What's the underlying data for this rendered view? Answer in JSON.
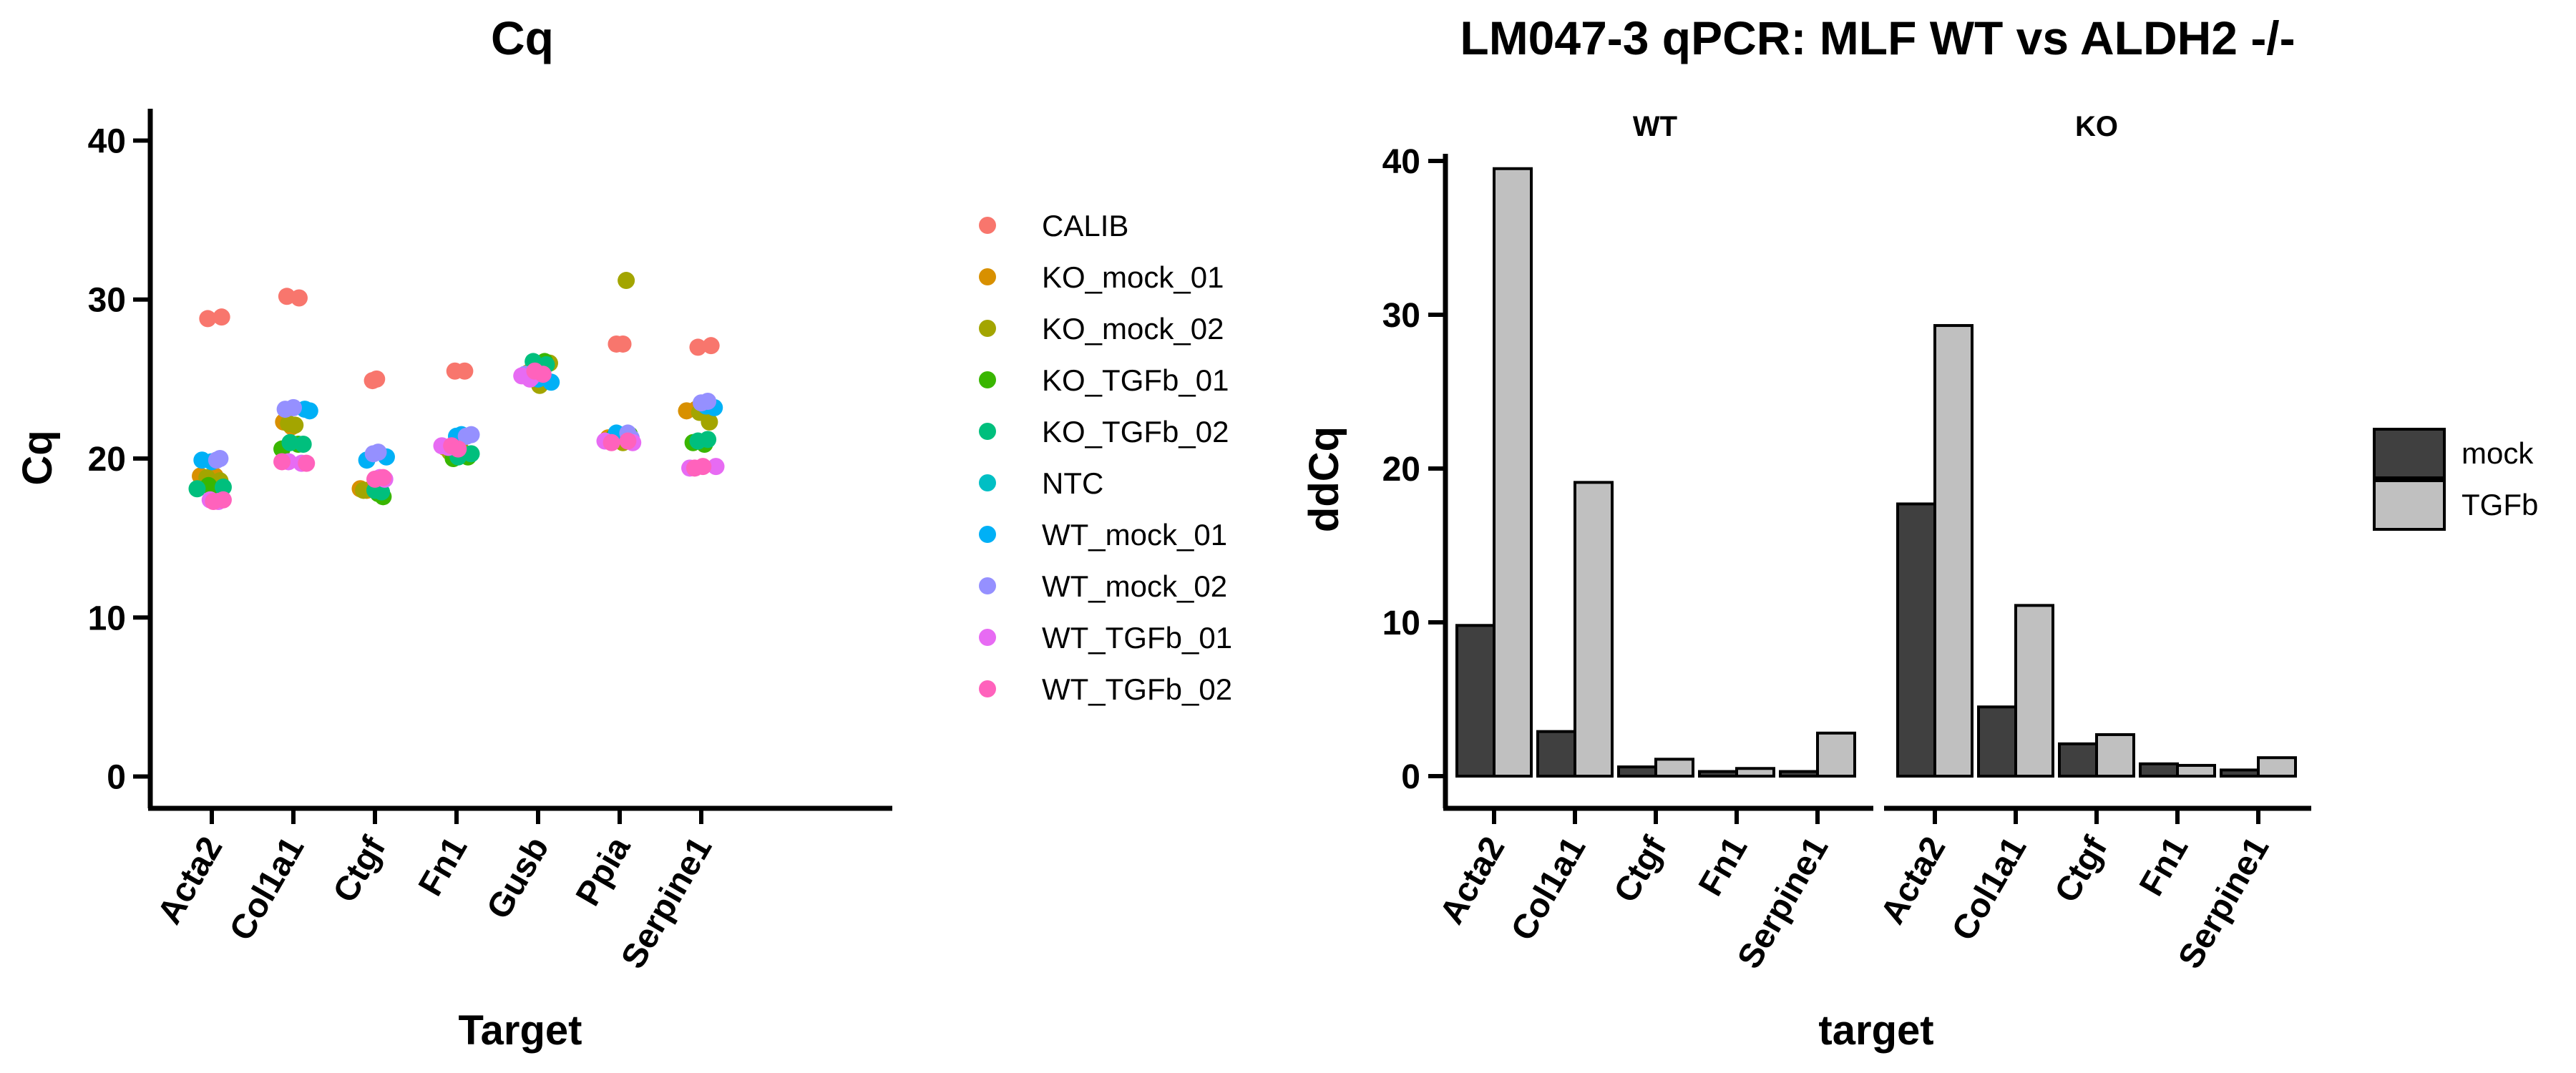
{
  "chart_data": [
    {
      "type": "scatter",
      "title": "Cq",
      "xlabel": "Target",
      "ylabel": "Cq",
      "ylim": [
        -2,
        42
      ],
      "yticks": [
        0,
        10,
        20,
        30,
        40
      ],
      "categories": [
        "Acta2",
        "Col1a1",
        "Ctgf",
        "Fn1",
        "Gusb",
        "Ppia",
        "Serpine1"
      ],
      "legend_position": "right",
      "series": [
        {
          "name": "CALIB",
          "color": "#F8766D",
          "points": [
            {
              "x": "Acta2",
              "y": 28.8,
              "off": -0.05
            },
            {
              "x": "Acta2",
              "y": 28.9,
              "off": 0.12
            },
            {
              "x": "Col1a1",
              "y": 30.2,
              "off": -0.08
            },
            {
              "x": "Col1a1",
              "y": 30.1,
              "off": 0.07
            },
            {
              "x": "Ctgf",
              "y": 24.9,
              "off": -0.03
            },
            {
              "x": "Ctgf",
              "y": 25.0,
              "off": 0.02
            },
            {
              "x": "Fn1",
              "y": 25.5,
              "off": -0.02
            },
            {
              "x": "Fn1",
              "y": 25.5,
              "off": 0.1
            },
            {
              "x": "Ppia",
              "y": 27.2,
              "off": -0.04
            },
            {
              "x": "Ppia",
              "y": 27.2,
              "off": 0.04
            },
            {
              "x": "Serpine1",
              "y": 27.0,
              "off": -0.04
            },
            {
              "x": "Serpine1",
              "y": 27.1,
              "off": 0.12
            }
          ]
        },
        {
          "name": "KO_mock_01",
          "color": "#D89000",
          "points": [
            {
              "x": "Acta2",
              "y": 18.9,
              "off": -0.14
            },
            {
              "x": "Acta2",
              "y": 18.9,
              "off": 0.04
            },
            {
              "x": "Col1a1",
              "y": 22.3,
              "off": -0.12
            },
            {
              "x": "Col1a1",
              "y": 22.0,
              "off": -0.02
            },
            {
              "x": "Ctgf",
              "y": 18.1,
              "off": -0.18
            },
            {
              "x": "Ctgf",
              "y": 18.0,
              "off": -0.1
            },
            {
              "x": "Fn1",
              "y": 20.7,
              "off": -0.14
            },
            {
              "x": "Fn1",
              "y": 20.5,
              "off": -0.04
            },
            {
              "x": "Gusb",
              "y": 25.4,
              "off": -0.12
            },
            {
              "x": "Gusb",
              "y": 25.6,
              "off": 0.04
            },
            {
              "x": "Ppia",
              "y": 21.3,
              "off": -0.14
            },
            {
              "x": "Ppia",
              "y": 21.4,
              "off": 0.0
            },
            {
              "x": "Serpine1",
              "y": 23.0,
              "off": -0.18
            },
            {
              "x": "Serpine1",
              "y": 23.1,
              "off": -0.06
            }
          ]
        },
        {
          "name": "KO_mock_02",
          "color": "#A3A500",
          "points": [
            {
              "x": "Acta2",
              "y": 18.8,
              "off": -0.06
            },
            {
              "x": "Acta2",
              "y": 18.6,
              "off": 0.1
            },
            {
              "x": "Col1a1",
              "y": 22.2,
              "off": -0.06
            },
            {
              "x": "Col1a1",
              "y": 22.1,
              "off": 0.02
            },
            {
              "x": "Ctgf",
              "y": 18.0,
              "off": -0.14
            },
            {
              "x": "Ctgf",
              "y": 18.1,
              "off": -0.02
            },
            {
              "x": "Fn1",
              "y": 20.4,
              "off": -0.08
            },
            {
              "x": "Fn1",
              "y": 20.5,
              "off": 0.06
            },
            {
              "x": "Gusb",
              "y": 26.0,
              "off": 0.14
            },
            {
              "x": "Gusb",
              "y": 24.6,
              "off": 0.02
            },
            {
              "x": "Ppia",
              "y": 31.2,
              "off": 0.08
            },
            {
              "x": "Ppia",
              "y": 21.0,
              "off": 0.04
            },
            {
              "x": "Serpine1",
              "y": 22.9,
              "off": -0.02
            },
            {
              "x": "Serpine1",
              "y": 22.3,
              "off": 0.1
            }
          ]
        },
        {
          "name": "KO_TGFb_01",
          "color": "#39B600",
          "points": [
            {
              "x": "Acta2",
              "y": 18.3,
              "off": -0.04
            },
            {
              "x": "Acta2",
              "y": 18.0,
              "off": 0.06
            },
            {
              "x": "Col1a1",
              "y": 20.6,
              "off": -0.14
            },
            {
              "x": "Col1a1",
              "y": 20.9,
              "off": 0.06
            },
            {
              "x": "Ctgf",
              "y": 17.8,
              "off": 0.04
            },
            {
              "x": "Ctgf",
              "y": 17.6,
              "off": 0.1
            },
            {
              "x": "Fn1",
              "y": 20.0,
              "off": -0.04
            },
            {
              "x": "Fn1",
              "y": 20.1,
              "off": 0.14
            },
            {
              "x": "Gusb",
              "y": 25.9,
              "off": -0.02
            },
            {
              "x": "Gusb",
              "y": 26.1,
              "off": 0.08
            },
            {
              "x": "Ppia",
              "y": 21.3,
              "off": -0.08
            },
            {
              "x": "Ppia",
              "y": 21.5,
              "off": 0.12
            },
            {
              "x": "Serpine1",
              "y": 21.0,
              "off": -0.1
            },
            {
              "x": "Serpine1",
              "y": 20.9,
              "off": 0.04
            }
          ]
        },
        {
          "name": "KO_TGFb_02",
          "color": "#00BF7D",
          "points": [
            {
              "x": "Acta2",
              "y": 18.1,
              "off": -0.18
            },
            {
              "x": "Acta2",
              "y": 18.2,
              "off": 0.14
            },
            {
              "x": "Col1a1",
              "y": 21.0,
              "off": -0.04
            },
            {
              "x": "Col1a1",
              "y": 20.9,
              "off": 0.12
            },
            {
              "x": "Ctgf",
              "y": 18.0,
              "off": 0.0
            },
            {
              "x": "Ctgf",
              "y": 17.9,
              "off": 0.08
            },
            {
              "x": "Fn1",
              "y": 20.1,
              "off": 0.02
            },
            {
              "x": "Fn1",
              "y": 20.3,
              "off": 0.18
            },
            {
              "x": "Gusb",
              "y": 26.1,
              "off": -0.06
            },
            {
              "x": "Gusb",
              "y": 25.9,
              "off": 0.1
            },
            {
              "x": "Ppia",
              "y": 21.4,
              "off": -0.02
            },
            {
              "x": "Ppia",
              "y": 21.5,
              "off": 0.08
            },
            {
              "x": "Serpine1",
              "y": 21.2,
              "off": 0.08
            },
            {
              "x": "Serpine1",
              "y": 21.1,
              "off": -0.04
            }
          ]
        },
        {
          "name": "NTC",
          "color": "#00BFC4",
          "points": []
        },
        {
          "name": "WT_mock_01",
          "color": "#00B0F6",
          "points": [
            {
              "x": "Acta2",
              "y": 19.9,
              "off": -0.12
            },
            {
              "x": "Acta2",
              "y": 19.8,
              "off": 0.0
            },
            {
              "x": "Col1a1",
              "y": 23.1,
              "off": 0.14
            },
            {
              "x": "Col1a1",
              "y": 23.0,
              "off": 0.2
            },
            {
              "x": "Ctgf",
              "y": 19.9,
              "off": -0.1
            },
            {
              "x": "Ctgf",
              "y": 20.1,
              "off": 0.14
            },
            {
              "x": "Fn1",
              "y": 21.4,
              "off": 0.0
            },
            {
              "x": "Fn1",
              "y": 21.5,
              "off": 0.06
            },
            {
              "x": "Gusb",
              "y": 24.8,
              "off": 0.16
            },
            {
              "x": "Gusb",
              "y": 25.0,
              "off": 0.0
            },
            {
              "x": "Ppia",
              "y": 21.5,
              "off": 0.06
            },
            {
              "x": "Ppia",
              "y": 21.6,
              "off": -0.04
            },
            {
              "x": "Serpine1",
              "y": 23.2,
              "off": 0.16
            },
            {
              "x": "Serpine1",
              "y": 23.3,
              "off": 0.06
            }
          ]
        },
        {
          "name": "WT_mock_02",
          "color": "#9590FF",
          "points": [
            {
              "x": "Acta2",
              "y": 19.9,
              "off": 0.06
            },
            {
              "x": "Acta2",
              "y": 20.0,
              "off": 0.1
            },
            {
              "x": "Col1a1",
              "y": 23.1,
              "off": -0.1
            },
            {
              "x": "Col1a1",
              "y": 23.2,
              "off": 0.0
            },
            {
              "x": "Ctgf",
              "y": 20.3,
              "off": -0.02
            },
            {
              "x": "Ctgf",
              "y": 20.4,
              "off": 0.04
            },
            {
              "x": "Fn1",
              "y": 21.4,
              "off": 0.12
            },
            {
              "x": "Fn1",
              "y": 21.5,
              "off": 0.18
            },
            {
              "x": "Gusb",
              "y": 25.3,
              "off": -0.16
            },
            {
              "x": "Gusb",
              "y": 25.1,
              "off": -0.08
            },
            {
              "x": "Ppia",
              "y": 21.6,
              "off": 0.1
            },
            {
              "x": "Ppia",
              "y": 21.3,
              "off": 0.14
            },
            {
              "x": "Serpine1",
              "y": 23.5,
              "off": 0.0
            },
            {
              "x": "Serpine1",
              "y": 23.6,
              "off": 0.08
            }
          ]
        },
        {
          "name": "WT_TGFb_01",
          "color": "#E76BF3",
          "points": [
            {
              "x": "Acta2",
              "y": 17.4,
              "off": -0.02
            },
            {
              "x": "Acta2",
              "y": 17.3,
              "off": 0.08
            },
            {
              "x": "Col1a1",
              "y": 19.8,
              "off": -0.06
            },
            {
              "x": "Col1a1",
              "y": 19.7,
              "off": 0.1
            },
            {
              "x": "Ctgf",
              "y": 18.8,
              "off": 0.06
            },
            {
              "x": "Ctgf",
              "y": 18.7,
              "off": 0.12
            },
            {
              "x": "Fn1",
              "y": 20.8,
              "off": -0.18
            },
            {
              "x": "Fn1",
              "y": 20.7,
              "off": -0.1
            },
            {
              "x": "Gusb",
              "y": 25.2,
              "off": -0.2
            },
            {
              "x": "Gusb",
              "y": 25.0,
              "off": -0.1
            },
            {
              "x": "Ppia",
              "y": 21.1,
              "off": -0.18
            },
            {
              "x": "Ppia",
              "y": 21.0,
              "off": 0.16
            },
            {
              "x": "Serpine1",
              "y": 19.5,
              "off": 0.18
            },
            {
              "x": "Serpine1",
              "y": 19.4,
              "off": -0.14
            }
          ]
        },
        {
          "name": "WT_TGFb_02",
          "color": "#FF62BC",
          "points": [
            {
              "x": "Acta2",
              "y": 17.3,
              "off": 0.02
            },
            {
              "x": "Acta2",
              "y": 17.4,
              "off": 0.14
            },
            {
              "x": "Col1a1",
              "y": 19.8,
              "off": -0.14
            },
            {
              "x": "Col1a1",
              "y": 19.7,
              "off": 0.16
            },
            {
              "x": "Ctgf",
              "y": 18.7,
              "off": 0.0
            },
            {
              "x": "Ctgf",
              "y": 18.8,
              "off": 0.1
            },
            {
              "x": "Fn1",
              "y": 20.8,
              "off": -0.06
            },
            {
              "x": "Fn1",
              "y": 20.6,
              "off": 0.02
            },
            {
              "x": "Gusb",
              "y": 25.5,
              "off": -0.04
            },
            {
              "x": "Gusb",
              "y": 25.3,
              "off": 0.06
            },
            {
              "x": "Ppia",
              "y": 21.0,
              "off": -0.1
            },
            {
              "x": "Ppia",
              "y": 21.1,
              "off": 0.1
            },
            {
              "x": "Serpine1",
              "y": 19.4,
              "off": -0.08
            },
            {
              "x": "Serpine1",
              "y": 19.5,
              "off": 0.02
            }
          ]
        }
      ]
    },
    {
      "type": "bar",
      "title": "LM047-3 qPCR: MLF WT vs ALDH2 -/-",
      "xlabel": "target",
      "ylabel": "ddCq",
      "ylim": [
        0,
        41
      ],
      "yticks": [
        0,
        10,
        20,
        30,
        40
      ],
      "legend_position": "right",
      "categories": [
        "Acta2",
        "Col1a1",
        "Ctgf",
        "Fn1",
        "Serpine1"
      ],
      "series": [
        {
          "name": "mock",
          "color": "#404040"
        },
        {
          "name": "TGFb",
          "color": "#C0C0C0"
        }
      ],
      "facets": [
        {
          "label": "WT",
          "values": {
            "mock": [
              9.8,
              2.9,
              0.6,
              0.3,
              0.3
            ],
            "TGFb": [
              39.5,
              19.1,
              1.1,
              0.5,
              2.8
            ]
          }
        },
        {
          "label": "KO",
          "values": {
            "mock": [
              17.7,
              4.5,
              2.1,
              0.8,
              0.4
            ],
            "TGFb": [
              29.3,
              11.1,
              2.7,
              0.7,
              1.2
            ]
          }
        }
      ]
    }
  ]
}
